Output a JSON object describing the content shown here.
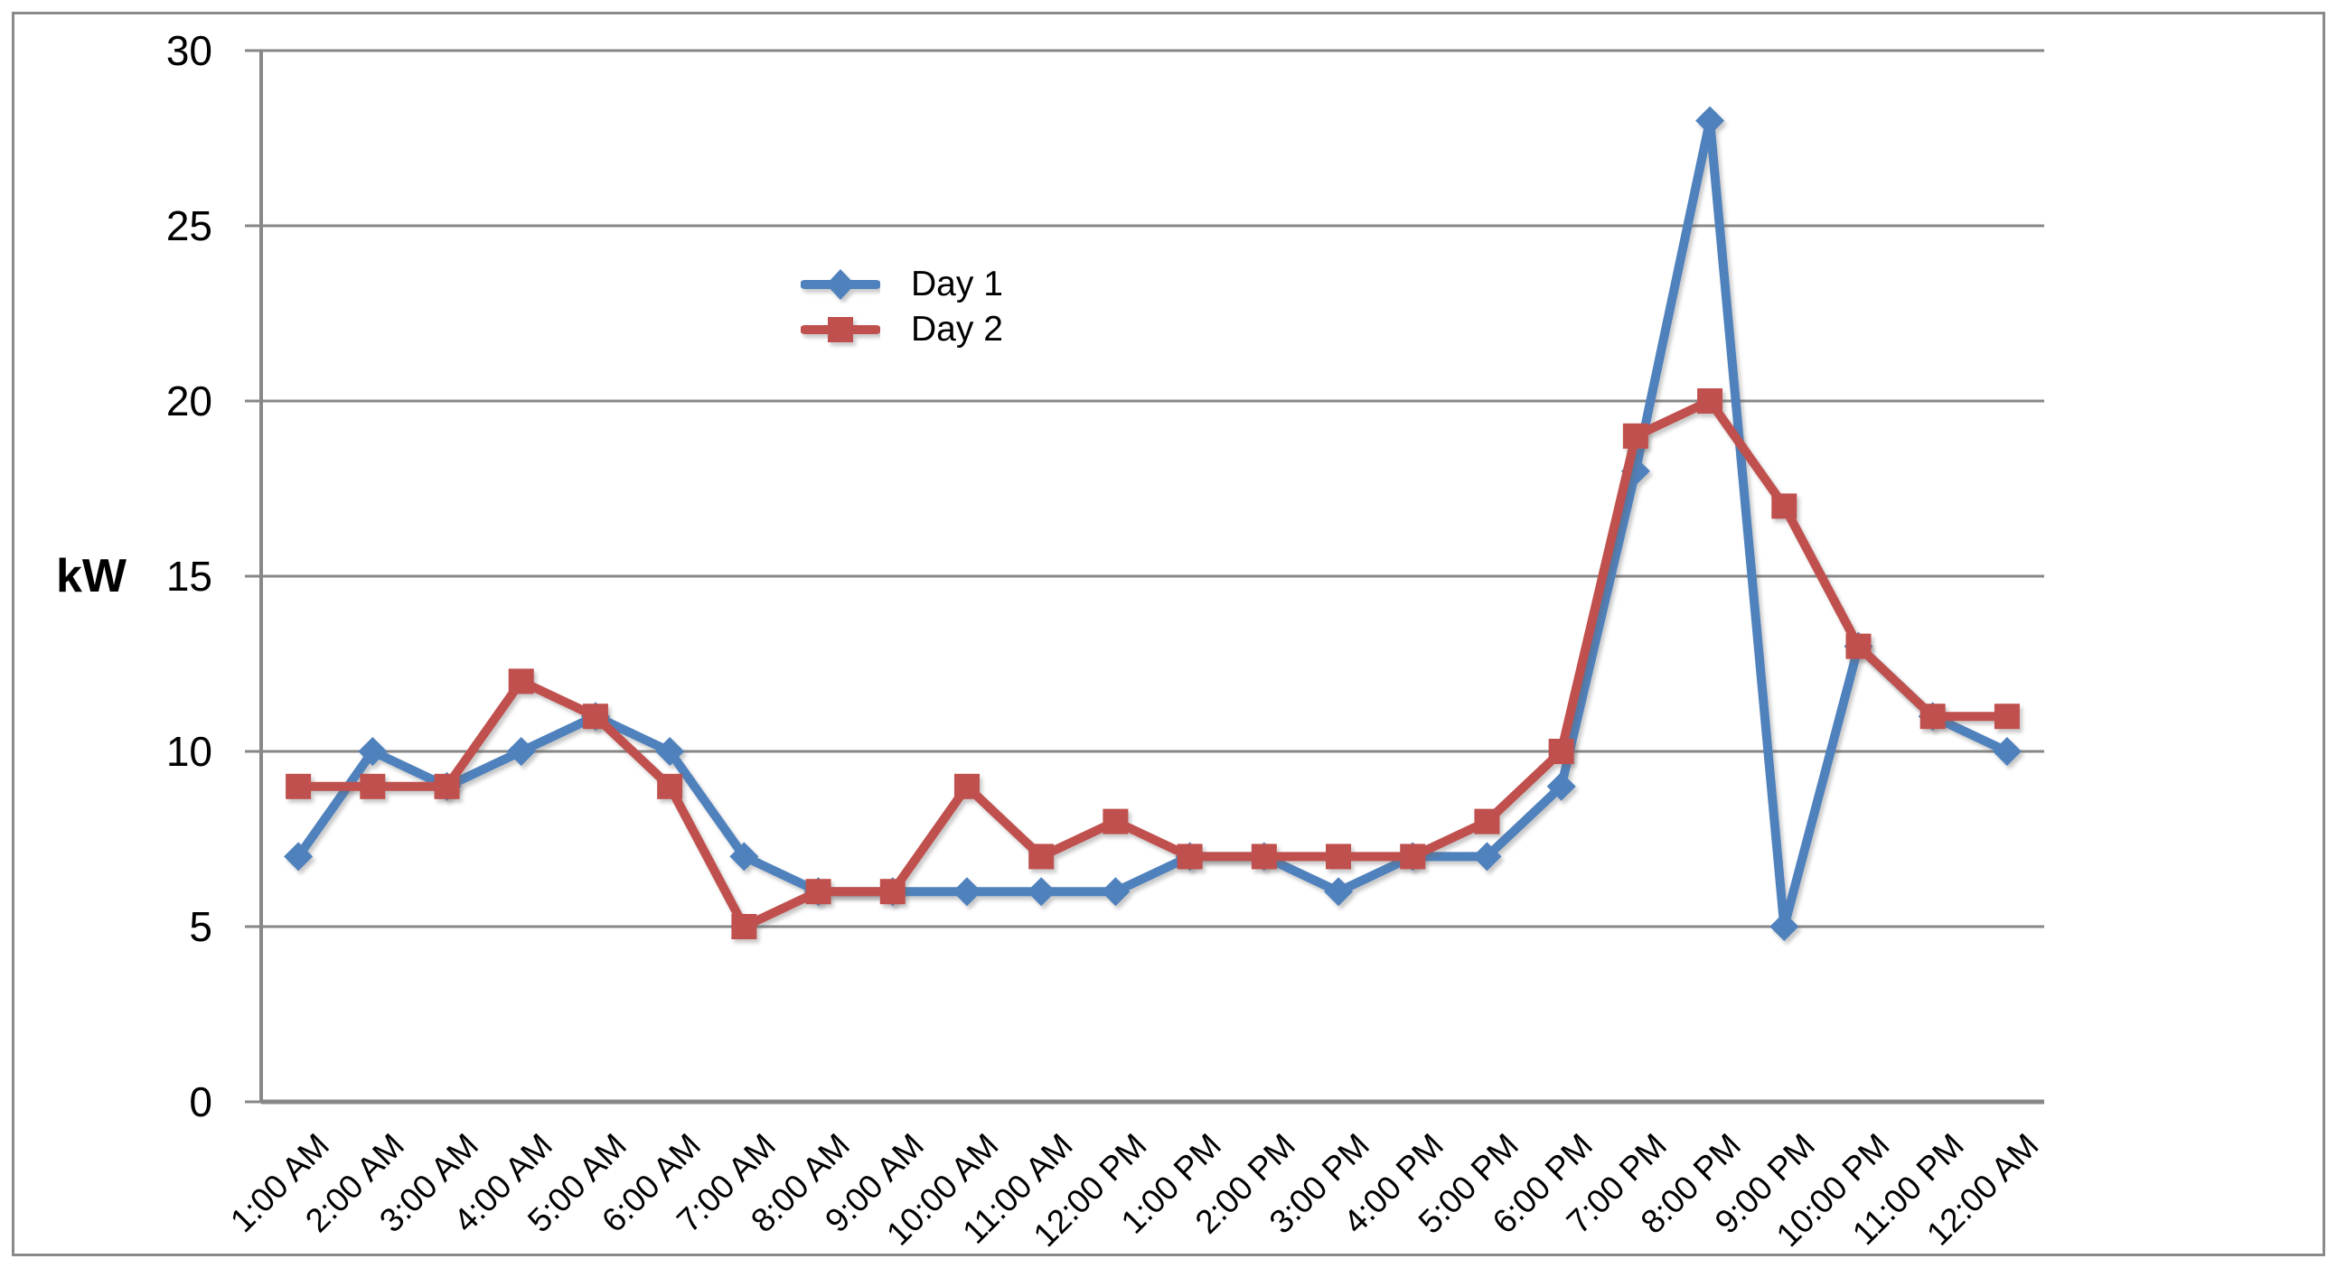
{
  "chart_data": {
    "type": "line",
    "title": "",
    "ylabel": "kW",
    "xlabel": "",
    "grid": "horizontal",
    "legend_position": "inside-upper-left-of-center",
    "ylim": [
      0,
      30
    ],
    "ytick_step": 5,
    "ytick_labels": [
      "0",
      "5",
      "10",
      "15",
      "20",
      "25",
      "30"
    ],
    "categories": [
      "1:00 AM",
      "2:00 AM",
      "3:00 AM",
      "4:00 AM",
      "5:00 AM",
      "6:00 AM",
      "7:00 AM",
      "8:00 AM",
      "9:00 AM",
      "10:00 AM",
      "11:00 AM",
      "12:00 PM",
      "1:00 PM",
      "2:00 PM",
      "3:00 PM",
      "4:00 PM",
      "5:00 PM",
      "6:00 PM",
      "7:00 PM",
      "8:00 PM",
      "9:00 PM",
      "10:00 PM",
      "11:00 PM",
      "12:00 AM"
    ],
    "series": [
      {
        "name": "Day 1",
        "color": "#4F81BD",
        "marker": "diamond",
        "values": [
          7,
          10,
          9,
          10,
          11,
          10,
          7,
          6,
          6,
          6,
          6,
          6,
          7,
          7,
          6,
          7,
          7,
          9,
          18,
          28,
          5,
          13,
          11,
          10
        ]
      },
      {
        "name": "Day 2",
        "color": "#C0504D",
        "marker": "square",
        "values": [
          9,
          9,
          9,
          12,
          11,
          9,
          5,
          6,
          6,
          9,
          7,
          8,
          7,
          7,
          7,
          7,
          8,
          10,
          19,
          20,
          17,
          13,
          11,
          11
        ]
      }
    ]
  }
}
